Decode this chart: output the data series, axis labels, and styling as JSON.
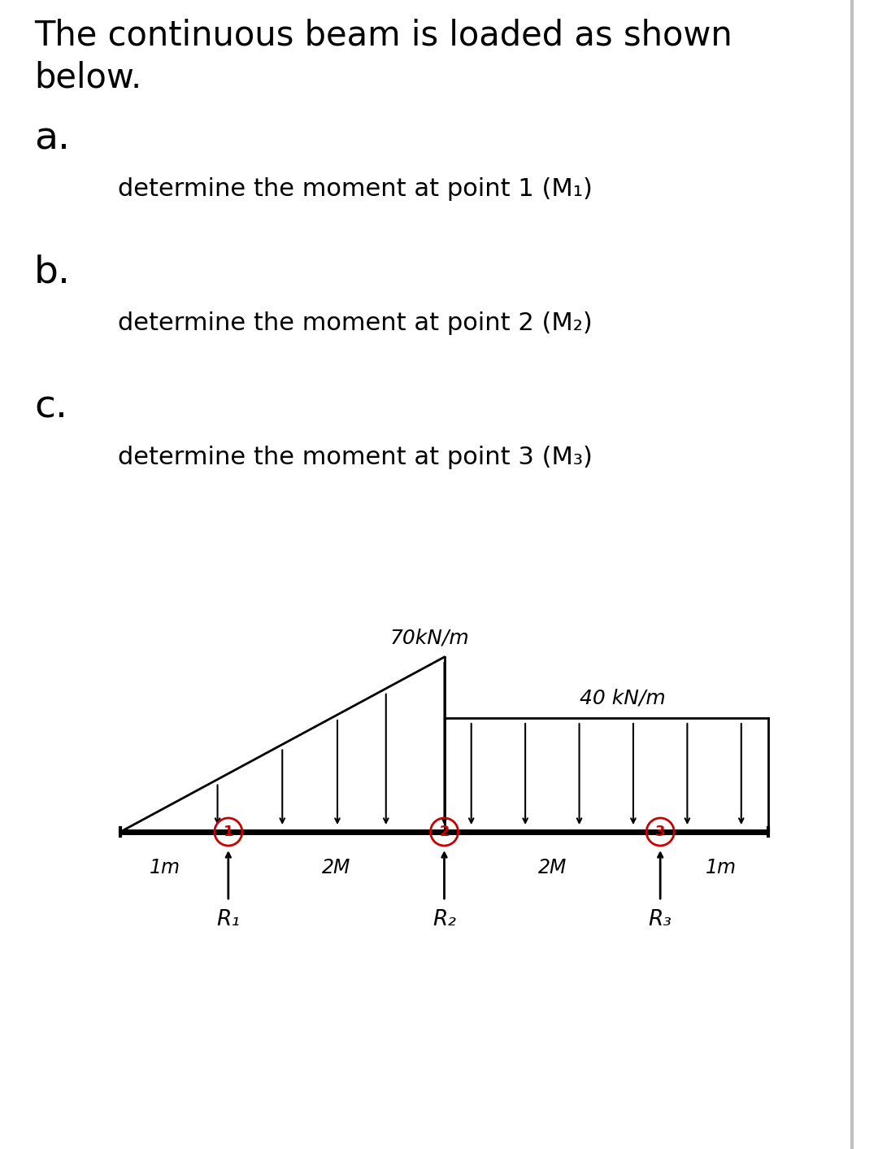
{
  "title_line1": "The continuous beam is loaded as shown",
  "title_line2": "below.",
  "label_a": "a.",
  "label_b": "b.",
  "label_c": "c.",
  "question_a": "determine the moment at point 1 (M₁)",
  "question_b": "determine the moment at point 2 (M₂)",
  "question_c": "determine the moment at point 3 (M₃)",
  "load1_label": "70kN/m",
  "load2_label": "40 kN/m",
  "dim_1m_left": "1m",
  "dim_2m_left": "2M",
  "dim_2m_right": "2M",
  "dim_1m_right": "1m",
  "r1_label": "R₁",
  "r2_label": "R₂",
  "r3_label": "R₃",
  "bg_color": "#ffffff",
  "text_color": "#000000",
  "beam_color": "#000000",
  "load_color": "#000000",
  "point_circle_color": "#cc0000",
  "border_color": "#c0c0c0",
  "title_fontsize": 30,
  "label_fontsize": 34,
  "question_fontsize": 22,
  "diagram_fontsize": 17
}
